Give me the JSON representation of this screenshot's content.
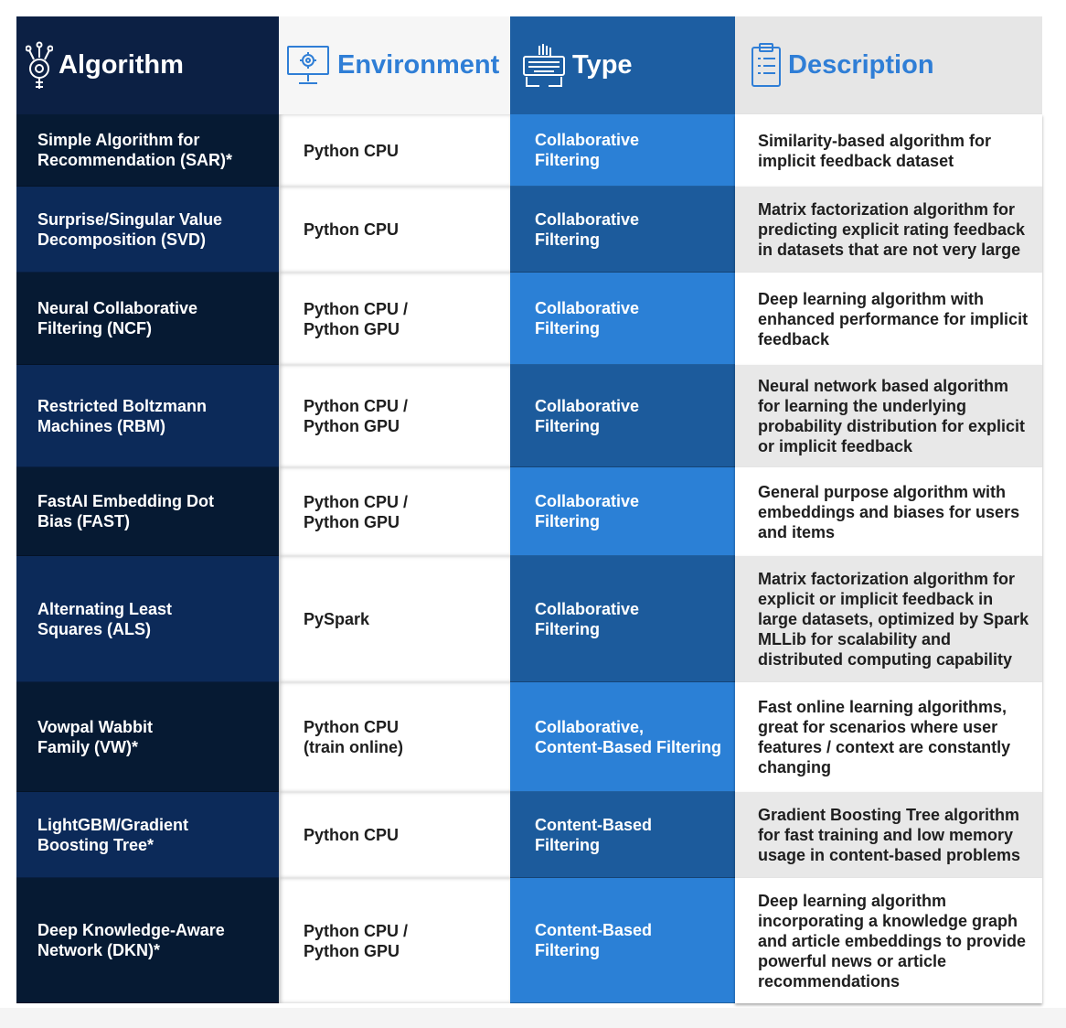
{
  "header": {
    "algorithm": "Algorithm",
    "environment": "Environment",
    "type": "Type",
    "description": "Description",
    "algorithm_icon": "brain-gear-icon",
    "environment_icon": "monitor-gear-icon",
    "type_icon": "hand-keyboard-icon",
    "description_icon": "clipboard-icon"
  },
  "rows": [
    {
      "algorithm": [
        "Simple Algorithm for",
        "Recommendation (SAR)*"
      ],
      "environment": [
        "Python CPU"
      ],
      "type": [
        "Collaborative",
        "Filtering"
      ],
      "description": [
        "Similarity-based algorithm for",
        "implicit feedback dataset"
      ]
    },
    {
      "algorithm": [
        "Surprise/Singular Value",
        "Decomposition (SVD)"
      ],
      "environment": [
        "Python CPU"
      ],
      "type": [
        "Collaborative",
        "Filtering"
      ],
      "description": [
        "Matrix factorization algorithm for",
        "predicting explicit rating feedback",
        "in datasets that are not very large"
      ]
    },
    {
      "algorithm": [
        "Neural Collaborative",
        "Filtering (NCF)"
      ],
      "environment": [
        "Python CPU /",
        "Python GPU"
      ],
      "type": [
        "Collaborative",
        "Filtering"
      ],
      "description": [
        "Deep learning algorithm with",
        "enhanced performance for implicit",
        "feedback"
      ]
    },
    {
      "algorithm": [
        "Restricted Boltzmann",
        "Machines (RBM)"
      ],
      "environment": [
        "Python CPU /",
        "Python GPU"
      ],
      "type": [
        "Collaborative",
        "Filtering"
      ],
      "description": [
        "Neural network based algorithm",
        "for learning the underlying",
        "probability distribution for explicit",
        "or implicit feedback"
      ]
    },
    {
      "algorithm": [
        "FastAI Embedding Dot",
        "Bias (FAST)"
      ],
      "environment": [
        "Python CPU /",
        "Python GPU"
      ],
      "type": [
        "Collaborative",
        "Filtering"
      ],
      "description": [
        "General purpose algorithm with",
        "embeddings and biases for users",
        "and items"
      ]
    },
    {
      "algorithm": [
        "Alternating Least",
        "Squares (ALS)"
      ],
      "environment": [
        "PySpark"
      ],
      "type": [
        "Collaborative",
        "Filtering"
      ],
      "description": [
        "Matrix factorization algorithm for",
        "explicit or implicit feedback in",
        "large datasets, optimized by Spark",
        "MLLib for scalability and",
        "distributed computing capability"
      ]
    },
    {
      "algorithm": [
        "Vowpal Wabbit",
        "Family (VW)*"
      ],
      "environment": [
        "Python CPU",
        "(train online)"
      ],
      "type": [
        "Collaborative,",
        "Content-Based Filtering"
      ],
      "description": [
        "Fast online learning algorithms,",
        "great for scenarios where user",
        "features / context are constantly",
        "changing"
      ]
    },
    {
      "algorithm": [
        "LightGBM/Gradient",
        "Boosting Tree*"
      ],
      "environment": [
        "Python CPU"
      ],
      "type": [
        "Content-Based",
        "Filtering"
      ],
      "description": [
        "Gradient Boosting Tree algorithm",
        "for fast training and low memory",
        "usage in content-based problems"
      ]
    },
    {
      "algorithm": [
        "Deep Knowledge-Aware",
        "Network (DKN)*"
      ],
      "environment": [
        "Python CPU /",
        "Python GPU"
      ],
      "type": [
        "Content-Based",
        "Filtering"
      ],
      "description": [
        "Deep learning algorithm",
        "incorporating a knowledge graph",
        "and article embeddings to provide",
        "powerful news or article",
        "recommendations"
      ]
    }
  ]
}
